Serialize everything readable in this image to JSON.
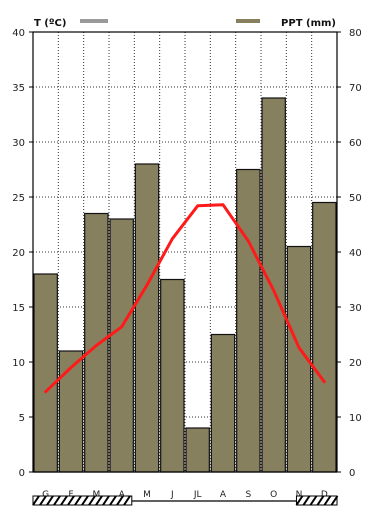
{
  "chart_data": {
    "type": "bar+line",
    "categories": [
      "G",
      "F",
      "M",
      "A",
      "M",
      "J",
      "JL",
      "A",
      "S",
      "O",
      "N",
      "D"
    ],
    "series": [
      {
        "name": "PPT (mm)",
        "kind": "bar",
        "axis": "right",
        "values": [
          36,
          22,
          47,
          46,
          56,
          35,
          8,
          25,
          55,
          68,
          41,
          49
        ],
        "color": "#86805f"
      },
      {
        "name": "T (ºC)",
        "kind": "line",
        "axis": "left",
        "values": [
          7.3,
          9.5,
          11.5,
          13.2,
          17.0,
          21.2,
          24.2,
          24.3,
          21.0,
          16.5,
          11.3,
          8.2
        ],
        "color": "#ff1a1a"
      }
    ],
    "y_left": {
      "min": 0,
      "max": 40,
      "ticks": [
        "0",
        "5",
        "10",
        "15",
        "20",
        "25",
        "30",
        "35",
        "40"
      ]
    },
    "y_right": {
      "min": 0,
      "max": 80,
      "ticks": [
        "0",
        "10",
        "20",
        "30",
        "40",
        "50",
        "60",
        "70",
        "80"
      ]
    },
    "legend": {
      "left_label": "T (ºC)",
      "right_label": "PPT (mm)",
      "placement": "top"
    },
    "grid": true
  }
}
